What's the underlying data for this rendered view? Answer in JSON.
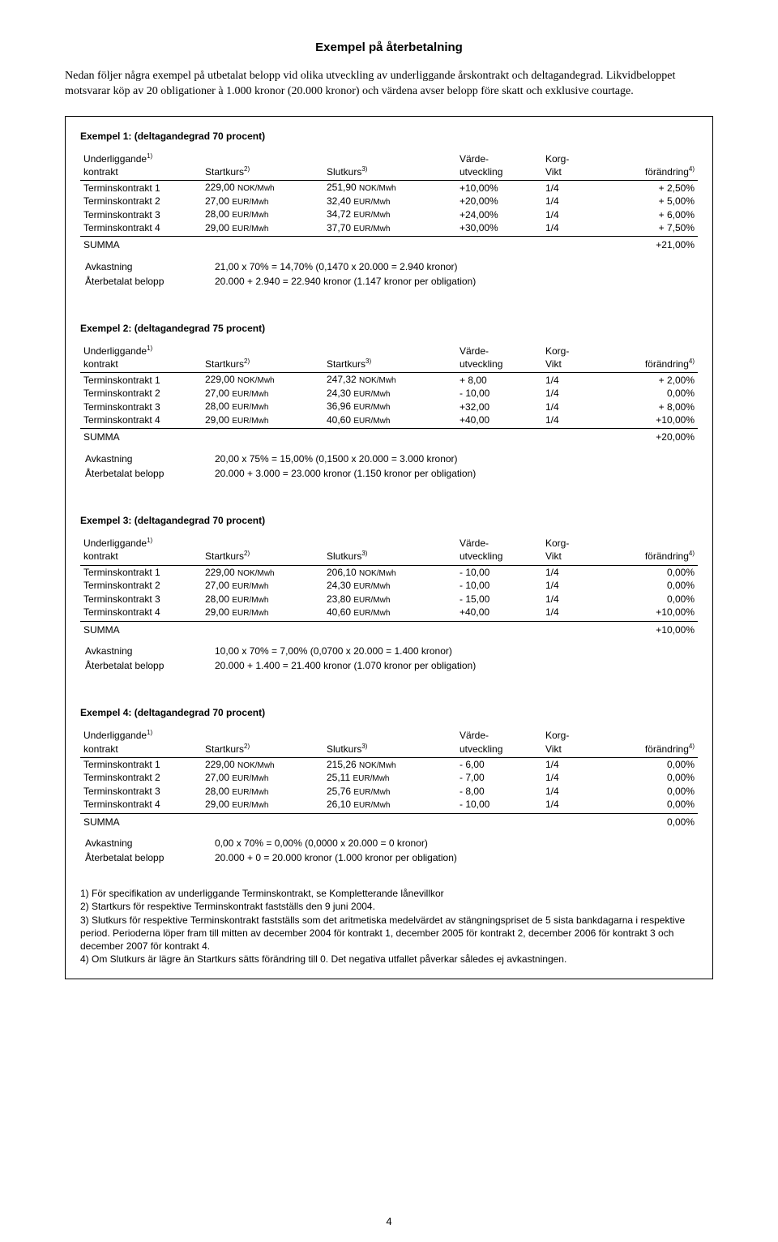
{
  "title": "Exempel på återbetalning",
  "intro": "Nedan följer några exempel på utbetalat belopp vid olika utveckling av underliggande årskontrakt och deltagandegrad. Likvidbeloppet motsvarar köp av 20 obligationer à 1.000 kronor (20.000 kronor) och värdena avser belopp före skatt och exklusive courtage.",
  "headers": {
    "c1a": "Underliggande",
    "c1b": "kontrakt",
    "c2": "Startkurs",
    "c3_slut": "Slutkurs",
    "c3_start": "Startkurs",
    "c4a": "Värde-",
    "c4b": "utveckling",
    "c5a": "Korg-",
    "c5b": "Vikt",
    "c6": "förändring"
  },
  "sup": {
    "1": "1)",
    "2": "2)",
    "3": "3)",
    "4": "4)"
  },
  "rowlabels": {
    "t1": "Terminskontrakt 1",
    "t2": "Terminskontrakt 2",
    "t3": "Terminskontrakt 3",
    "t4": "Terminskontrakt 4"
  },
  "summa": "SUMMA",
  "avk_label": "Avkastning",
  "ater_label": "Återbetalat belopp",
  "unit_nok": "NOK/Mwh",
  "unit_eur": "EUR/Mwh",
  "ex1": {
    "title": "Exempel 1: (deltagandegrad 70 procent)",
    "rows": [
      {
        "s": "229,00",
        "su": "nok",
        "e": "251,90",
        "eu": "nok",
        "v": "+10,00%",
        "k": "1/4",
        "f": "+ 2,50%"
      },
      {
        "s": "27,00",
        "su": "eur",
        "e": "32,40",
        "eu": "eur",
        "v": "+20,00%",
        "k": "1/4",
        "f": "+ 5,00%"
      },
      {
        "s": "28,00",
        "su": "eur",
        "e": "34,72",
        "eu": "eur",
        "v": "+24,00%",
        "k": "1/4",
        "f": "+ 6,00%"
      },
      {
        "s": "29,00",
        "su": "eur",
        "e": "37,70",
        "eu": "eur",
        "v": "+30,00%",
        "k": "1/4",
        "f": "+ 7,50%"
      }
    ],
    "sum": "+21,00%",
    "avk": "21,00 x 70% = 14,70% (0,1470 x 20.000 = 2.940 kronor)",
    "ater": "20.000 + 2.940 = 22.940 kronor (1.147 kronor per obligation)"
  },
  "ex2": {
    "title": "Exempel 2: (deltagandegrad 75 procent)",
    "c3": "start",
    "rows": [
      {
        "s": "229,00",
        "su": "nok",
        "e": "247,32",
        "eu": "nok",
        "v": "+ 8,00",
        "k": "1/4",
        "f": "+ 2,00%"
      },
      {
        "s": "27,00",
        "su": "eur",
        "e": "24,30",
        "eu": "eur",
        "v": "- 10,00",
        "k": "1/4",
        "f": "0,00%"
      },
      {
        "s": "28,00",
        "su": "eur",
        "e": "36,96",
        "eu": "eur",
        "v": "+32,00",
        "k": "1/4",
        "f": "+ 8,00%"
      },
      {
        "s": "29,00",
        "su": "eur",
        "e": "40,60",
        "eu": "eur",
        "v": "+40,00",
        "k": "1/4",
        "f": "+10,00%"
      }
    ],
    "sum": "+20,00%",
    "avk": "20,00 x 75% = 15,00% (0,1500 x 20.000 = 3.000 kronor)",
    "ater": "20.000 + 3.000 = 23.000 kronor (1.150 kronor per obligation)"
  },
  "ex3": {
    "title": "Exempel 3: (deltagandegrad 70 procent)",
    "rows": [
      {
        "s": "229,00",
        "su": "nok",
        "e": "206,10",
        "eu": "nok",
        "v": "- 10,00",
        "k": "1/4",
        "f": "0,00%"
      },
      {
        "s": "27,00",
        "su": "eur",
        "e": "24,30",
        "eu": "eur",
        "v": "- 10,00",
        "k": "1/4",
        "f": "0,00%"
      },
      {
        "s": "28,00",
        "su": "eur",
        "e": "23,80",
        "eu": "eur",
        "v": "- 15,00",
        "k": "1/4",
        "f": "0,00%"
      },
      {
        "s": "29,00",
        "su": "eur",
        "e": "40,60",
        "eu": "eur",
        "v": "+40,00",
        "k": "1/4",
        "f": "+10,00%"
      }
    ],
    "sum": "+10,00%",
    "avk": "10,00 x 70% = 7,00% (0,0700 x 20.000 = 1.400 kronor)",
    "ater": "20.000 + 1.400 = 21.400 kronor (1.070 kronor per obligation)"
  },
  "ex4": {
    "title": "Exempel 4: (deltagandegrad 70 procent)",
    "rows": [
      {
        "s": "229,00",
        "su": "nok",
        "e": "215,26",
        "eu": "nok",
        "v": "- 6,00",
        "k": "1/4",
        "f": "0,00%"
      },
      {
        "s": "27,00",
        "su": "eur",
        "e": "25,11",
        "eu": "eur",
        "v": "- 7,00",
        "k": "1/4",
        "f": "0,00%"
      },
      {
        "s": "28,00",
        "su": "eur",
        "e": "25,76",
        "eu": "eur",
        "v": "- 8,00",
        "k": "1/4",
        "f": "0,00%"
      },
      {
        "s": "29,00",
        "su": "eur",
        "e": "26,10",
        "eu": "eur",
        "v": "- 10,00",
        "k": "1/4",
        "f": "0,00%"
      }
    ],
    "sum": "0,00%",
    "avk": "0,00 x 70% = 0,00% (0,0000 x 20.000 = 0 kronor)",
    "ater": "20.000 + 0 = 20.000 kronor (1.000 kronor per obligation)"
  },
  "footnotes": [
    "1) För specifikation av underliggande Terminskontrakt, se Kompletterande lånevillkor",
    "2) Startkurs för respektive Terminskontrakt fastställs den 9 juni 2004.",
    "3) Slutkurs för respektive Terminskontrakt fastställs som det aritmetiska medelvärdet av stängningspriset de 5 sista bankdagarna i respektive period. Perioderna löper fram till mitten av december 2004 för kontrakt 1, december 2005 för kontrakt 2, december 2006 för kontrakt 3 och december 2007 för kontrakt 4.",
    "4) Om Slutkurs är lägre än Startkurs sätts förändring till 0. Det negativa utfallet påverkar således ej avkastningen."
  ],
  "pagenum": "4"
}
